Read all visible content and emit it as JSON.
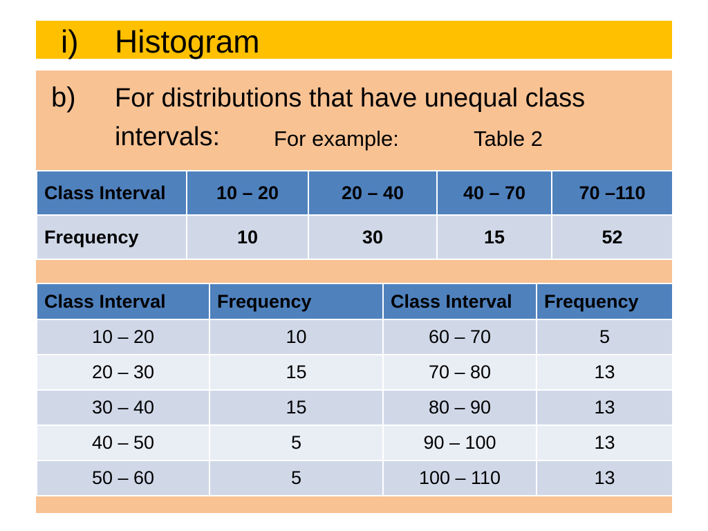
{
  "title": {
    "number": "i)",
    "text": "Histogram"
  },
  "subtitle": {
    "letter": "b)",
    "line1": "For distributions that have unequal class",
    "line2": "intervals:",
    "example": "For example:",
    "table_ref": "Table 2"
  },
  "table1": {
    "header": [
      "Class Interval",
      "10 – 20",
      "20 – 40",
      "40 – 70",
      "70 –110"
    ],
    "row": [
      "Frequency",
      "10",
      "30",
      "15",
      "52"
    ]
  },
  "table2": {
    "headers": [
      "Class Interval",
      "Frequency",
      "Class Interval",
      "Frequency"
    ],
    "rows": [
      [
        "10 – 20",
        "10",
        "60 – 70",
        "5"
      ],
      [
        "20 – 30",
        "15",
        "70 – 80",
        "13"
      ],
      [
        "30 – 40",
        "15",
        "80 – 90",
        "13"
      ],
      [
        "40 – 50",
        "5",
        "90 – 100",
        "13"
      ],
      [
        "50 – 60",
        "5",
        "100 – 110",
        "13"
      ]
    ]
  },
  "colors": {
    "title_bar": "#ffc000",
    "panel": "#f8c293",
    "table_header": "#4f81bd",
    "table_row_dark": "#d0d8e8",
    "table_row_light": "#e9edf4"
  }
}
